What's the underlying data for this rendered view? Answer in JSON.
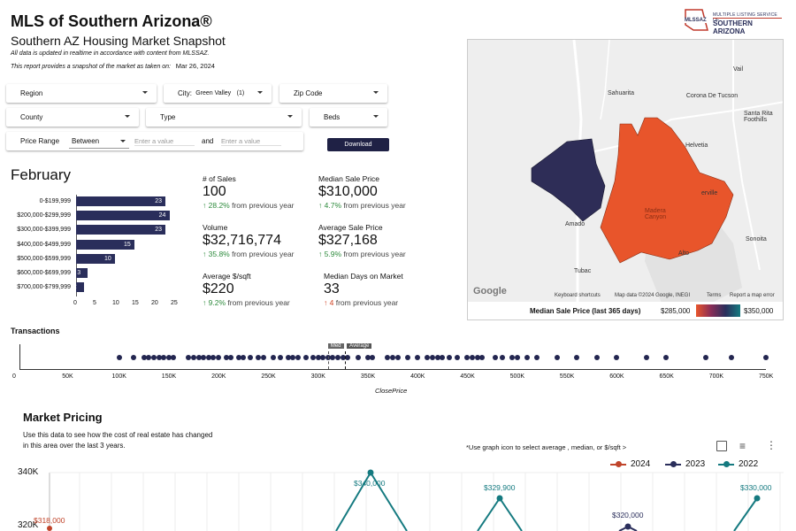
{
  "header": {
    "title": "MLS of Southern Arizona®",
    "subtitle": "Southern AZ Housing Market Snapshot",
    "note1": "All data is updated in realtime in accordance with content from MLSSAZ.",
    "note2": "This report provides a snapshot of the market as taken on:",
    "snapshot_date": "Mar 26, 2024",
    "logo_text_small": "MULTIPLE LISTING SERVICE OF",
    "logo_text_big": "SOUTHERN ARIZONA",
    "logo_mark": "MLSSAZ"
  },
  "filters": {
    "region": "Region",
    "city_label": "City:",
    "city_value": "Green Valley",
    "city_count": "(1)",
    "zip": "Zip Code",
    "county": "County",
    "type": "Type",
    "beds": "Beds",
    "price_range_label": "Price Range",
    "price_range_mode": "Between",
    "min_placeholder": "Enter a value",
    "and_label": "and",
    "max_placeholder": "Enter a value",
    "download": "Download"
  },
  "month": "February",
  "chart_data": [
    {
      "type": "bar",
      "categories": [
        "0-$199,999",
        "$200,000-$299,999",
        "$300,000-$399,999",
        "$400,000-$499,999",
        "$500,000-$599,999",
        "$600,000-$699,999",
        "$700,000-$799,999"
      ],
      "values": [
        23,
        24,
        23,
        15,
        10,
        3,
        2
      ],
      "xticks": [
        "0",
        "5",
        "10",
        "15",
        "20",
        "25"
      ],
      "xlim": [
        0,
        25
      ],
      "color": "#2a2e5b"
    },
    {
      "type": "scatter",
      "xlabel": "ClosePrice",
      "xticks": [
        "0",
        "50K",
        "100K",
        "150K",
        "200K",
        "250K",
        "300K",
        "350K",
        "400K",
        "450K",
        "500K",
        "550K",
        "600K",
        "650K",
        "700K",
        "750K"
      ],
      "xlim": [
        0,
        750000
      ],
      "median_label": "Med",
      "average_label": "Average",
      "median": 310000,
      "average": 327168,
      "x": [
        100000,
        115000,
        125000,
        130000,
        135000,
        140000,
        145000,
        150000,
        155000,
        170000,
        175000,
        180000,
        185000,
        190000,
        195000,
        200000,
        208000,
        212000,
        220000,
        225000,
        232000,
        240000,
        245000,
        255000,
        262000,
        270000,
        275000,
        280000,
        288000,
        295000,
        300000,
        305000,
        310000,
        315000,
        320000,
        325000,
        330000,
        340000,
        350000,
        355000,
        370000,
        375000,
        380000,
        390000,
        400000,
        410000,
        415000,
        420000,
        425000,
        432000,
        440000,
        450000,
        455000,
        460000,
        465000,
        478000,
        485000,
        495000,
        500000,
        510000,
        520000,
        540000,
        560000,
        580000,
        600000,
        630000,
        650000,
        690000,
        715000,
        750000
      ],
      "color": "#232650"
    },
    {
      "type": "line",
      "title": "Market Pricing",
      "ylabels": [
        "340K",
        "320K"
      ],
      "series": [
        {
          "name": "2024",
          "color": "#c0442a"
        },
        {
          "name": "2023",
          "color": "#2a2e5b"
        },
        {
          "name": "2022",
          "color": "#157a80"
        }
      ],
      "visible_labels": [
        {
          "series": "2024",
          "value": "$318,000"
        },
        {
          "series": "2022",
          "value": "$340,000"
        },
        {
          "series": "2022",
          "value": "$329,900"
        },
        {
          "series": "2023",
          "value": "$320,000"
        },
        {
          "series": "2022",
          "value": "$330,000"
        }
      ]
    }
  ],
  "stats": {
    "sales_label": "# of Sales",
    "sales_value": "100",
    "sales_change": "28.2%",
    "sales_suffix": "from previous year",
    "median_label": "Median Sale Price",
    "median_value": "$310,000",
    "median_change": "4.7%",
    "median_suffix": "from previous year",
    "volume_label": "Volume",
    "volume_value": "$32,716,774",
    "volume_change": "35.8%",
    "volume_suffix": "from previous year",
    "avg_label": "Average Sale Price",
    "avg_value": "$327,168",
    "avg_change": "5.9%",
    "avg_suffix": "from previous year",
    "ppsf_label": "Average $/sqft",
    "ppsf_value": "$220",
    "ppsf_change": "9.2%",
    "ppsf_suffix": "from previous year",
    "dom_label": "Median Days on Market",
    "dom_value": "33",
    "dom_change": "4",
    "dom_suffix": "from previous year"
  },
  "map": {
    "places": [
      "Vail",
      "Sahuarita",
      "Corona De Tucson",
      "Santa Rita Foothills",
      "Helvetia",
      "Amado",
      "Tubac",
      "Sonoita",
      "Alto",
      "erville",
      "Madera Canyon"
    ],
    "google": "Google",
    "keyboard": "Keyboard shortcuts",
    "mapdata": "Map data ©2024 Google, INEGI",
    "terms": "Terms",
    "report": "Report a map error",
    "legend_title": "Median Sale Price (last 365 days)",
    "legend_min": "$285,000",
    "legend_max": "$350,000",
    "color_low": "#e8552b",
    "color_high": "#2a2e5b"
  },
  "transactions": {
    "title": "Transactions"
  },
  "market": {
    "title": "Market Pricing",
    "desc": "Use this data to see how the cost of real estate has changed in this area over the last 3 years.",
    "hint": "*Use graph icon to  select average , median, or $/sqft  >"
  }
}
